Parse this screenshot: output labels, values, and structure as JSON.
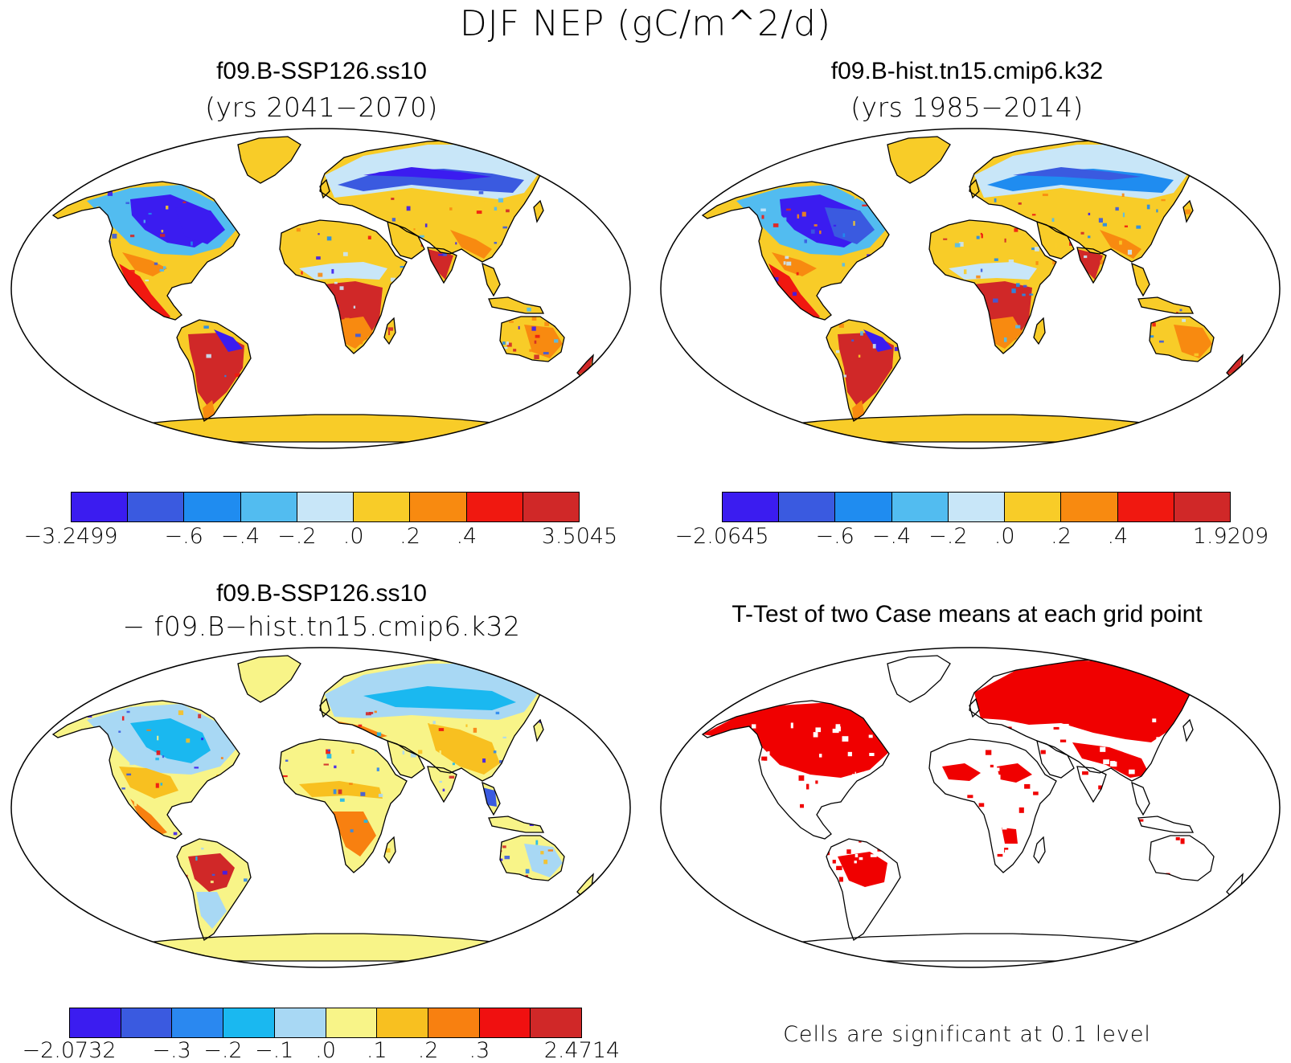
{
  "title": "DJF NEP (gC/m^2/d)",
  "panels": [
    {
      "id": "ssp",
      "title": "f09.B-SSP126.ss10",
      "subtitle": "(yrs 2041−2070)",
      "colorbar": {
        "colors": [
          "#3b1cf0",
          "#3a5ae0",
          "#1f8cf0",
          "#52bcf0",
          "#c8e6f8",
          "#f8cc28",
          "#f88a10",
          "#f01810",
          "#d02828"
        ],
        "labels": [
          "−3.2499",
          "−.6",
          "−.4",
          "−.2",
          ".0",
          ".2",
          ".4",
          "3.5045"
        ]
      }
    },
    {
      "id": "hist",
      "title": "f09.B-hist.tn15.cmip6.k32",
      "subtitle": "(yrs 1985−2014)",
      "colorbar": {
        "colors": [
          "#3b1cf0",
          "#3a5ae0",
          "#1f8cf0",
          "#52bcf0",
          "#c8e6f8",
          "#f8cc28",
          "#f88a10",
          "#f01810",
          "#d02828"
        ],
        "labels": [
          "−2.0645",
          "−.6",
          "−.4",
          "−.2",
          ".0",
          ".2",
          ".4",
          "1.9209"
        ]
      }
    },
    {
      "id": "diff",
      "title": "f09.B-SSP126.ss10",
      "subtitle": "− f09.B−hist.tn15.cmip6.k32",
      "colorbar": {
        "colors": [
          "#3b1cf0",
          "#3a5ae0",
          "#2a88f0",
          "#1ab8f0",
          "#a8d8f4",
          "#f8f488",
          "#f8c020",
          "#f88010",
          "#f01010",
          "#d02828"
        ],
        "labels": [
          "−2.0732",
          "−.3",
          "−.2",
          "−.1",
          ".0",
          ".1",
          ".2",
          ".3",
          "2.4714"
        ]
      }
    },
    {
      "id": "ttest",
      "title": "T-Test of two Case means at each grid point",
      "note": "Cells are significant at 0.1 level",
      "significant_color": "#f00000"
    }
  ]
}
